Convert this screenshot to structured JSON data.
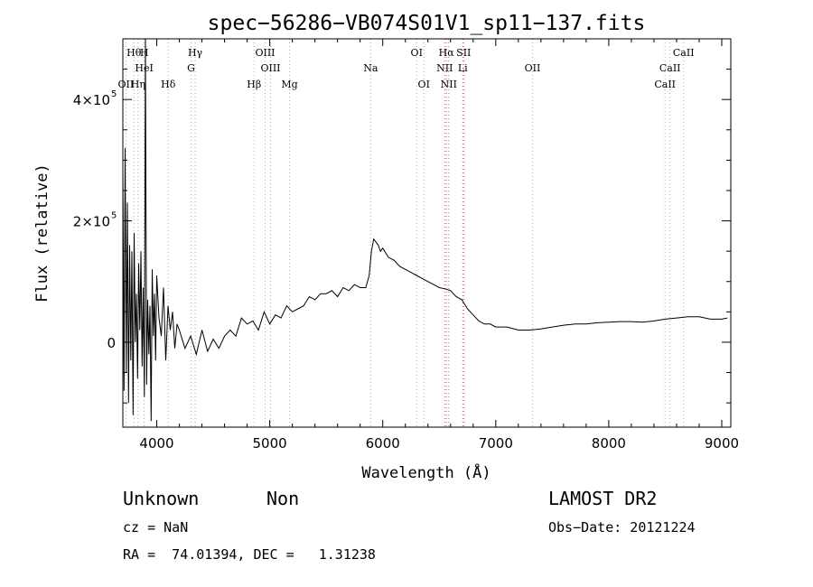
{
  "chart_data": {
    "type": "line",
    "title": "spec−56286−VB074S01V1_sp11−137.fits",
    "xlabel": "Wavelength (Å)",
    "ylabel": "Flux (relative)",
    "xlim": [
      3700,
      9080
    ],
    "ylim": [
      -140000,
      500000
    ],
    "xticks": [
      {
        "value": 4000,
        "label": "4000"
      },
      {
        "value": 5000,
        "label": "5000"
      },
      {
        "value": 6000,
        "label": "6000"
      },
      {
        "value": 7000,
        "label": "7000"
      },
      {
        "value": 8000,
        "label": "8000"
      },
      {
        "value": 9000,
        "label": "9000"
      }
    ],
    "yticks": [
      {
        "value": 0,
        "label": "0"
      },
      {
        "value": 200000,
        "label": "2×10",
        "exp": "5"
      },
      {
        "value": 400000,
        "label": "4×10",
        "exp": "5"
      }
    ],
    "grid": false,
    "series": [
      {
        "x": [
          3700,
          3710,
          3720,
          3730,
          3740,
          3750,
          3760,
          3770,
          3780,
          3790,
          3800,
          3810,
          3820,
          3830,
          3840,
          3850,
          3860,
          3870,
          3880,
          3890,
          3900,
          3910,
          3920,
          3930,
          3940,
          3950,
          3960,
          3970,
          3980,
          3990,
          4000,
          4020,
          4040,
          4060,
          4080,
          4100,
          4120,
          4140,
          4160,
          4180,
          4200,
          4250,
          4300,
          4350,
          4400,
          4450,
          4500,
          4550,
          4600,
          4650,
          4700,
          4750,
          4800,
          4850,
          4900,
          4950,
          5000,
          5050,
          5100,
          5150,
          5200,
          5250,
          5300,
          5350,
          5400,
          5450,
          5500,
          5550,
          5600,
          5650,
          5700,
          5750,
          5800,
          5850,
          5880,
          5900,
          5920,
          5940,
          5960,
          5980,
          6000,
          6050,
          6100,
          6150,
          6200,
          6250,
          6300,
          6350,
          6400,
          6450,
          6500,
          6550,
          6600,
          6650,
          6700,
          6750,
          6800,
          6850,
          6900,
          6950,
          7000,
          7100,
          7200,
          7300,
          7400,
          7500,
          7600,
          7700,
          7800,
          7900,
          8000,
          8100,
          8200,
          8300,
          8400,
          8500,
          8600,
          8700,
          8800,
          8900,
          9000,
          9050
        ],
        "y": [
          280000,
          -80000,
          320000,
          -50000,
          230000,
          -100000,
          160000,
          -30000,
          150000,
          -120000,
          180000,
          0,
          80000,
          -60000,
          130000,
          20000,
          150000,
          -40000,
          90000,
          -90000,
          510000,
          -70000,
          70000,
          -20000,
          60000,
          -130000,
          120000,
          10000,
          80000,
          -30000,
          110000,
          40000,
          10000,
          90000,
          -30000,
          60000,
          20000,
          50000,
          -10000,
          30000,
          20000,
          -10000,
          10000,
          -20000,
          20000,
          -15000,
          5000,
          -10000,
          10000,
          20000,
          10000,
          40000,
          30000,
          35000,
          20000,
          50000,
          30000,
          45000,
          40000,
          60000,
          50000,
          55000,
          60000,
          75000,
          70000,
          80000,
          80000,
          85000,
          75000,
          90000,
          85000,
          95000,
          90000,
          90000,
          110000,
          150000,
          170000,
          165000,
          160000,
          150000,
          155000,
          140000,
          135000,
          125000,
          120000,
          115000,
          110000,
          105000,
          100000,
          95000,
          90000,
          88000,
          85000,
          75000,
          70000,
          55000,
          45000,
          35000,
          30000,
          30000,
          25000,
          25000,
          20000,
          20000,
          22000,
          25000,
          28000,
          30000,
          30000,
          32000,
          33000,
          34000,
          34000,
          33000,
          35000,
          38000,
          40000,
          42000,
          42000,
          38000,
          38000,
          40000
        ]
      }
    ],
    "lines": [
      {
        "label": "Hθ",
        "x": 3798,
        "row": 0,
        "color": "#aaaaaa"
      },
      {
        "label": "H",
        "x": 3889,
        "row": 0,
        "color": "#aaaaaa"
      },
      {
        "label": "Hγ",
        "x": 4340,
        "row": 0,
        "color": "#aaaaaa"
      },
      {
        "label": "OIII",
        "x": 4959,
        "row": 0,
        "color": "#aaaaaa"
      },
      {
        "label": "OI",
        "x": 6300,
        "row": 0,
        "color": "#aaaaaa"
      },
      {
        "label": "Hα",
        "x": 6563,
        "row": 0,
        "color": "#cc6666"
      },
      {
        "label": "SII",
        "x": 6716,
        "row": 0,
        "color": "#cc6666"
      },
      {
        "label": "CaII",
        "x": 8662,
        "row": 0,
        "color": "#aaaaaa"
      },
      {
        "label": "HeI",
        "x": 3889,
        "row": 1,
        "color": "#aaaaaa"
      },
      {
        "label": "G",
        "x": 4304,
        "row": 1,
        "color": "#aaaaaa"
      },
      {
        "label": "OIII",
        "x": 5007,
        "row": 1,
        "color": "#aaaaaa"
      },
      {
        "label": "Na",
        "x": 5893,
        "row": 1,
        "color": "#aaaaaa"
      },
      {
        "label": "NII",
        "x": 6548,
        "row": 1,
        "color": "#cc6666"
      },
      {
        "label": "Li",
        "x": 6708,
        "row": 1,
        "color": "#cc6666"
      },
      {
        "label": "OII",
        "x": 7325,
        "row": 1,
        "color": "#aaaaaa"
      },
      {
        "label": "CaII",
        "x": 8542,
        "row": 1,
        "color": "#aaaaaa"
      },
      {
        "label": "OII",
        "x": 3727,
        "row": 2,
        "color": "#aaaaaa"
      },
      {
        "label": "Hη",
        "x": 3835,
        "row": 2,
        "color": "#aaaaaa"
      },
      {
        "label": "Hδ",
        "x": 4102,
        "row": 2,
        "color": "#aaaaaa"
      },
      {
        "label": "Hβ",
        "x": 4861,
        "row": 2,
        "color": "#aaaaaa"
      },
      {
        "label": "Mg",
        "x": 5175,
        "row": 2,
        "color": "#aaaaaa"
      },
      {
        "label": "OI",
        "x": 6364,
        "row": 2,
        "color": "#aaaaaa"
      },
      {
        "label": "NII",
        "x": 6584,
        "row": 2,
        "color": "#cc6666"
      },
      {
        "label": "CaII",
        "x": 8498,
        "row": 2,
        "color": "#aaaaaa"
      }
    ]
  },
  "info": {
    "class_label": "Unknown",
    "subclass_label": "Non",
    "survey": "LAMOST DR2",
    "cz": "cz = NaN",
    "obs_date": "Obs−Date: 20121224",
    "coords": "RA =  74.01394, DEC =   1.31238"
  }
}
